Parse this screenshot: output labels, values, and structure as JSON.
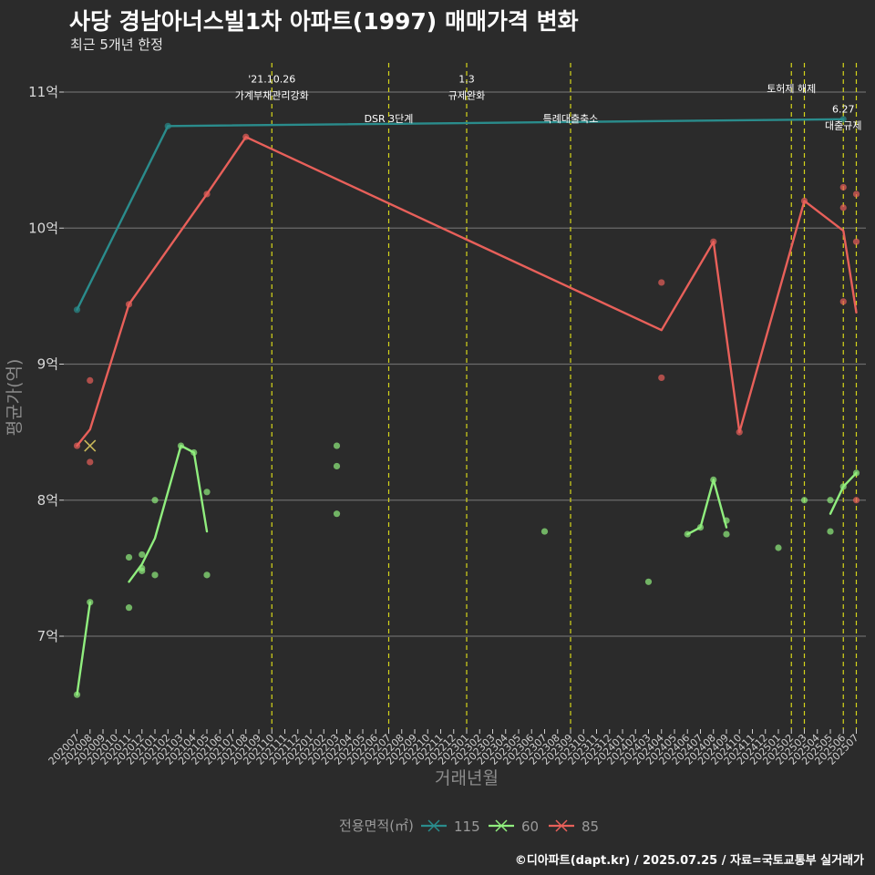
{
  "title": "사당 경남아너스빌1차 아파트(1997) 매매가격 변화",
  "subtitle": "최근 5개년 한정",
  "caption": "©디아파트(dapt.kr) / 2025.07.25 / 자료=국토교통부 실거래가",
  "chart_data": {
    "type": "line",
    "title": "사당 경남아너스빌1차 아파트(1997) 매매가격 변화",
    "subtitle": "최근 5개년 한정",
    "xlabel": "거래년월",
    "ylabel": "평균가(억)",
    "ylim": [
      6.4,
      11.3
    ],
    "yticks": [
      7,
      8,
      9,
      10,
      11
    ],
    "ytick_labels": [
      "7억",
      "8억",
      "9억",
      "10억",
      "11억"
    ],
    "categories": [
      "202007",
      "202008",
      "202009",
      "202010",
      "202011",
      "202012",
      "202101",
      "202102",
      "202103",
      "202104",
      "202105",
      "202106",
      "202107",
      "202108",
      "202109",
      "202110",
      "202111",
      "202112",
      "202201",
      "202202",
      "202203",
      "202204",
      "202205",
      "202206",
      "202207",
      "202208",
      "202209",
      "202210",
      "202211",
      "202212",
      "202301",
      "202302",
      "202303",
      "202304",
      "202305",
      "202306",
      "202307",
      "202308",
      "202309",
      "202310",
      "202311",
      "202312",
      "202401",
      "202402",
      "202403",
      "202404",
      "202405",
      "202406",
      "202407",
      "202408",
      "202409",
      "202410",
      "202411",
      "202412",
      "202501",
      "202502",
      "202503",
      "202504",
      "202505",
      "202506",
      "202507"
    ],
    "legend_title": "전용면적(㎡)",
    "series": [
      {
        "name": "115",
        "color": "#2a8c8c",
        "line": [
          [
            "202007",
            9.4
          ],
          [
            "202102",
            10.75
          ],
          [
            "202506",
            10.8
          ]
        ],
        "points": [
          [
            "202007",
            9.4
          ],
          [
            "202102",
            10.75
          ],
          [
            "202506",
            10.8
          ]
        ]
      },
      {
        "name": "60",
        "color": "#90ee7e",
        "line_segments": [
          [
            [
              "202007",
              6.57
            ],
            [
              "202008",
              7.25
            ]
          ],
          [
            [
              "202011",
              7.4
            ],
            [
              "202012",
              7.53
            ],
            [
              "202101",
              7.72
            ],
            [
              "202103",
              8.4
            ],
            [
              "202104",
              8.35
            ],
            [
              "202105",
              7.77
            ]
          ],
          [
            [
              "202406",
              7.75
            ],
            [
              "202407",
              7.8
            ],
            [
              "202408",
              8.15
            ],
            [
              "202409",
              7.8
            ]
          ],
          [
            [
              "202505",
              7.9
            ],
            [
              "202506",
              8.1
            ],
            [
              "202507",
              8.2
            ]
          ]
        ],
        "points": [
          [
            "202007",
            6.57
          ],
          [
            "202008",
            7.25
          ],
          [
            "202011",
            7.58
          ],
          [
            "202011",
            7.21
          ],
          [
            "202012",
            7.6
          ],
          [
            "202012",
            7.5
          ],
          [
            "202012",
            7.48
          ],
          [
            "202101",
            8.0
          ],
          [
            "202101",
            7.45
          ],
          [
            "202103",
            8.4
          ],
          [
            "202104",
            8.35
          ],
          [
            "202105",
            8.06
          ],
          [
            "202105",
            7.45
          ],
          [
            "202203",
            8.4
          ],
          [
            "202203",
            8.25
          ],
          [
            "202203",
            7.9
          ],
          [
            "202307",
            7.77
          ],
          [
            "202403",
            7.4
          ],
          [
            "202406",
            7.75
          ],
          [
            "202407",
            7.8
          ],
          [
            "202408",
            8.15
          ],
          [
            "202409",
            7.85
          ],
          [
            "202409",
            7.75
          ],
          [
            "202501",
            7.65
          ],
          [
            "202503",
            8.0
          ],
          [
            "202505",
            8.0
          ],
          [
            "202505",
            7.77
          ],
          [
            "202506",
            8.1
          ],
          [
            "202507",
            8.2
          ]
        ]
      },
      {
        "name": "85",
        "color": "#e8605a",
        "line": [
          [
            "202007",
            8.4
          ],
          [
            "202008",
            8.52
          ],
          [
            "202011",
            9.44
          ],
          [
            "202105",
            10.25
          ],
          [
            "202108",
            10.67
          ],
          [
            "202404",
            9.25
          ],
          [
            "202408",
            9.9
          ],
          [
            "202410",
            8.5
          ],
          [
            "202503",
            10.2
          ],
          [
            "202506",
            9.98
          ],
          [
            "202507",
            9.38
          ]
        ],
        "points": [
          [
            "202007",
            8.4
          ],
          [
            "202008",
            8.88
          ],
          [
            "202008",
            8.28
          ],
          [
            "202011",
            9.44
          ],
          [
            "202105",
            10.25
          ],
          [
            "202108",
            10.67
          ],
          [
            "202404",
            9.6
          ],
          [
            "202404",
            8.9
          ],
          [
            "202408",
            9.9
          ],
          [
            "202410",
            8.5
          ],
          [
            "202503",
            10.2
          ],
          [
            "202506",
            10.3
          ],
          [
            "202506",
            10.15
          ],
          [
            "202506",
            9.46
          ],
          [
            "202507",
            10.25
          ],
          [
            "202507",
            9.9
          ],
          [
            "202507",
            8.0
          ]
        ]
      }
    ],
    "cross_marker": {
      "x": "202008",
      "y": 8.4
    },
    "vlines": [
      "202110",
      "202207",
      "202301",
      "202309",
      "202502",
      "202503",
      "202506",
      "202507"
    ],
    "annotations": [
      {
        "x": "202110",
        "y": 11.07,
        "text": "'21.10.26"
      },
      {
        "x": "202110",
        "y": 10.95,
        "text": "가계부채관리강화"
      },
      {
        "x": "202207",
        "y": 10.78,
        "text": "DSR 3단계"
      },
      {
        "x": "202301",
        "y": 11.07,
        "text": "1.3"
      },
      {
        "x": "202301",
        "y": 10.95,
        "text": "규제완화"
      },
      {
        "x": "202309",
        "y": 10.78,
        "text": "특례대출축소"
      },
      {
        "x": "202502",
        "y": 11.0,
        "text": "토허제 해제"
      },
      {
        "x": "202506",
        "y": 10.85,
        "text": "6.27"
      },
      {
        "x": "202506",
        "y": 10.73,
        "text": "대출규제"
      }
    ]
  }
}
